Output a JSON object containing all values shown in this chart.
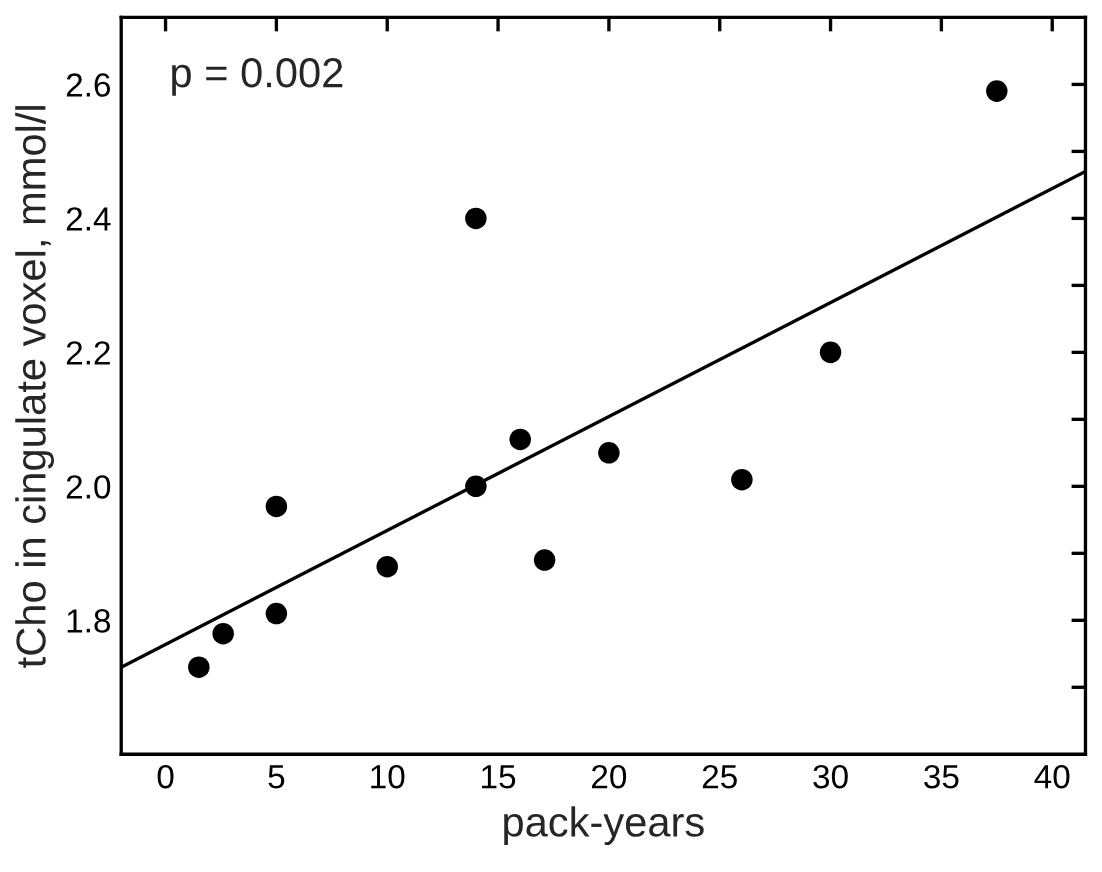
{
  "chart_data": {
    "type": "scatter",
    "xlabel": "pack-years",
    "ylabel": "tCho in cingulate voxel, mmol/l",
    "annotations": [
      "p = 0.002"
    ],
    "xlim": [
      -2,
      41.5
    ],
    "ylim": [
      1.6,
      2.7
    ],
    "xticks": [
      0,
      5,
      10,
      15,
      20,
      25,
      30,
      35,
      40
    ],
    "yticks": [
      {
        "value": 1.7,
        "label": null
      },
      1.8,
      {
        "value": 1.9,
        "label": null
      },
      {
        "value": 2.0,
        "label": "2.0"
      },
      {
        "value": 2.1,
        "label": null
      },
      2.2,
      {
        "value": 2.3,
        "label": null
      },
      2.4,
      {
        "value": 2.5,
        "label": null
      },
      2.6
    ],
    "grid": false,
    "legend": false,
    "marker": "circle",
    "series": [
      {
        "color": "#000000",
        "x": [
          1.5,
          2.6,
          5,
          5,
          10,
          14,
          14,
          16,
          17.1,
          20,
          26,
          30,
          37.5
        ],
        "values": [
          1.73,
          1.78,
          1.81,
          1.97,
          1.88,
          2.4,
          2.0,
          2.07,
          1.89,
          2.05,
          2.01,
          2.2,
          2.59
        ]
      },
      {
        "type": "line",
        "color": "#000000",
        "x": [
          -2,
          41.5
        ],
        "values": [
          1.73,
          2.47
        ],
        "marker": "none"
      }
    ]
  }
}
